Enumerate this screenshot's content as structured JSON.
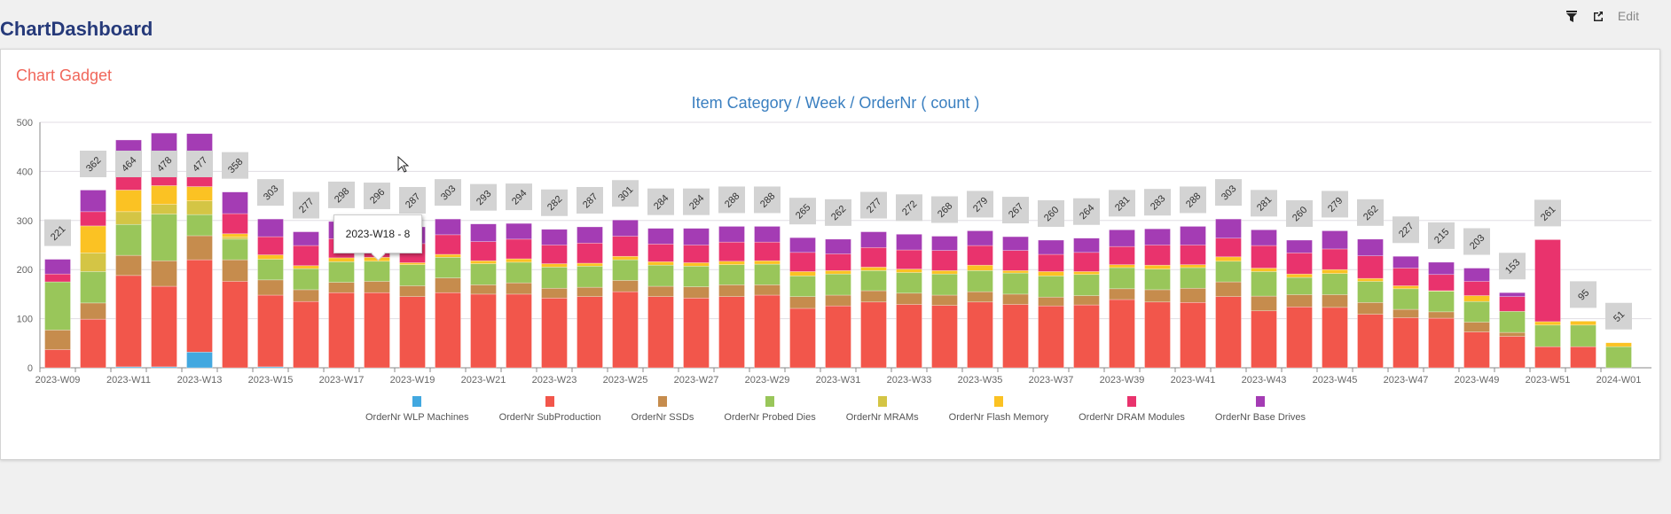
{
  "header": {
    "title": "ChartDashboard",
    "edit_label": "Edit",
    "icons": [
      "filter-icon",
      "export-icon"
    ]
  },
  "gadget": {
    "title": "Chart Gadget"
  },
  "tooltip": {
    "text": "2023-W18 - 8"
  },
  "chart_data": {
    "type": "bar",
    "stacked": true,
    "title": "Item Category / Week / OrderNr ( count )",
    "xlabel": "",
    "ylabel": "",
    "ylim": [
      0,
      500
    ],
    "yticks": [
      0,
      100,
      200,
      300,
      400,
      500
    ],
    "grid": true,
    "legend_position": "bottom",
    "categories": [
      "2023-W09",
      "2023-W10",
      "2023-W11",
      "2023-W12",
      "2023-W13",
      "2023-W14",
      "2023-W15",
      "2023-W16",
      "2023-W17",
      "2023-W18",
      "2023-W19",
      "2023-W20",
      "2023-W21",
      "2023-W22",
      "2023-W23",
      "2023-W24",
      "2023-W25",
      "2023-W26",
      "2023-W27",
      "2023-W28",
      "2023-W29",
      "2023-W30",
      "2023-W31",
      "2023-W32",
      "2023-W33",
      "2023-W34",
      "2023-W35",
      "2023-W36",
      "2023-W37",
      "2023-W38",
      "2023-W39",
      "2023-W40",
      "2023-W41",
      "2023-W42",
      "2023-W43",
      "2023-W44",
      "2023-W45",
      "2023-W46",
      "2023-W47",
      "2023-W48",
      "2023-W49",
      "2023-W50",
      "2023-W51",
      "2023-W52",
      "2024-W01"
    ],
    "totals": [
      221,
      362,
      464,
      478,
      477,
      358,
      303,
      277,
      298,
      296,
      287,
      303,
      293,
      294,
      282,
      287,
      301,
      284,
      284,
      288,
      288,
      265,
      262,
      277,
      272,
      268,
      279,
      267,
      260,
      264,
      281,
      283,
      288,
      303,
      281,
      260,
      279,
      262,
      227,
      215,
      203,
      153,
      261,
      95,
      51
    ],
    "series": [
      {
        "name": "OrderNr WLP Machines",
        "color": "#42a8e0",
        "values": [
          0,
          0,
          2,
          2,
          32,
          0,
          2,
          0,
          0,
          0,
          0,
          0,
          0,
          0,
          0,
          0,
          0,
          0,
          0,
          0,
          0,
          0,
          0,
          0,
          0,
          0,
          0,
          0,
          0,
          0,
          0,
          0,
          0,
          0,
          0,
          0,
          0,
          0,
          0,
          0,
          0,
          0,
          0,
          0,
          0
        ]
      },
      {
        "name": "OrderNr SubProduction",
        "color": "#f2564b",
        "values": [
          37,
          99,
          186,
          164,
          188,
          176,
          146,
          135,
          153,
          153,
          145,
          153,
          150,
          150,
          142,
          145,
          155,
          145,
          142,
          145,
          148,
          121,
          126,
          134,
          129,
          127,
          134,
          129,
          126,
          128,
          139,
          134,
          133,
          145,
          116,
          124,
          123,
          109,
          102,
          101,
          73,
          64,
          43,
          43,
          0
        ]
      },
      {
        "name": "OrderNr SSDs",
        "color": "#c68c4d",
        "values": [
          40,
          33,
          41,
          52,
          49,
          44,
          31,
          24,
          21,
          23,
          22,
          30,
          19,
          23,
          20,
          19,
          23,
          21,
          23,
          24,
          21,
          24,
          22,
          23,
          23,
          21,
          21,
          21,
          18,
          19,
          22,
          25,
          29,
          30,
          30,
          25,
          26,
          24,
          17,
          13,
          20,
          8,
          0,
          0,
          0
        ]
      },
      {
        "name": "OrderNr Probed Dies",
        "color": "#99c65a",
        "values": [
          98,
          64,
          63,
          95,
          43,
          42,
          42,
          43,
          42,
          41,
          43,
          42,
          43,
          42,
          43,
          43,
          42,
          43,
          42,
          41,
          42,
          42,
          43,
          41,
          42,
          43,
          43,
          43,
          43,
          43,
          43,
          42,
          42,
          42,
          50,
          35,
          43,
          43,
          42,
          42,
          42,
          43,
          44,
          44,
          43
        ]
      },
      {
        "name": "OrderNr MRAMs",
        "color": "#d4c545",
        "values": [
          0,
          38,
          26,
          20,
          28,
          4,
          0,
          0,
          0,
          0,
          0,
          0,
          0,
          0,
          0,
          0,
          0,
          0,
          0,
          0,
          0,
          0,
          0,
          0,
          0,
          0,
          0,
          0,
          0,
          0,
          0,
          0,
          0,
          0,
          0,
          0,
          0,
          0,
          0,
          0,
          0,
          0,
          0,
          0,
          0
        ]
      },
      {
        "name": "OrderNr Flash Memory",
        "color": "#fbc223",
        "values": [
          0,
          55,
          44,
          38,
          29,
          7,
          9,
          6,
          8,
          8,
          4,
          6,
          6,
          7,
          7,
          6,
          7,
          7,
          7,
          7,
          7,
          9,
          7,
          7,
          7,
          7,
          11,
          5,
          9,
          6,
          6,
          8,
          6,
          9,
          7,
          7,
          8,
          6,
          6,
          1,
          12,
          0,
          7,
          8,
          8
        ]
      },
      {
        "name": "OrderNr DRAM Modules",
        "color": "#e9336d",
        "values": [
          16,
          29,
          40,
          43,
          44,
          41,
          37,
          41,
          39,
          35,
          39,
          40,
          39,
          40,
          38,
          41,
          41,
          36,
          36,
          39,
          38,
          39,
          34,
          40,
          39,
          41,
          40,
          41,
          35,
          39,
          37,
          41,
          40,
          38,
          46,
          43,
          42,
          46,
          36,
          33,
          29,
          30,
          167,
          0,
          0
        ]
      },
      {
        "name": "OrderNr Base Drives",
        "color": "#a43cb4",
        "values": [
          30,
          44,
          62,
          64,
          64,
          44,
          36,
          28,
          35,
          36,
          34,
          32,
          36,
          32,
          32,
          33,
          33,
          32,
          34,
          32,
          32,
          30,
          30,
          32,
          32,
          29,
          30,
          28,
          29,
          29,
          34,
          33,
          38,
          39,
          32,
          26,
          37,
          34,
          24,
          25,
          27,
          8,
          0,
          0,
          0
        ]
      }
    ]
  }
}
